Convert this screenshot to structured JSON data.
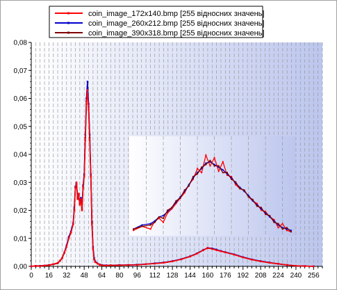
{
  "chart_data": [
    {
      "type": "line",
      "title": "",
      "xlabel": "",
      "ylabel": "",
      "xlim": [
        0,
        264
      ],
      "ylim": [
        0,
        0.08
      ],
      "grid": true,
      "legend_position": "top",
      "x_ticks": [
        0,
        16,
        32,
        48,
        64,
        80,
        96,
        112,
        128,
        144,
        160,
        176,
        192,
        208,
        224,
        240,
        256
      ],
      "y_ticks": [
        0,
        0.01,
        0.02,
        0.03,
        0.04,
        0.05,
        0.06,
        0.07,
        0.08
      ],
      "y_tick_labels": [
        "0,00",
        "0,01",
        "0,02",
        "0,03",
        "0,04",
        "0,05",
        "0,06",
        "0,07",
        "0,08"
      ],
      "background_gradient": [
        "#ffffff",
        "#bcc6ee"
      ],
      "series": [
        {
          "name": "coin_image_172x140.bmp [255 відносних значень]",
          "color": "#ff0000",
          "x": [
            0,
            4,
            8,
            12,
            16,
            20,
            24,
            26,
            28,
            30,
            32,
            34,
            36,
            38,
            39,
            40,
            41,
            42,
            43,
            44,
            45,
            46,
            47,
            48,
            49,
            50,
            51,
            52,
            53,
            54,
            55,
            56,
            57,
            58,
            60,
            62,
            64,
            68,
            72,
            80,
            88,
            96,
            104,
            112,
            120,
            128,
            136,
            144,
            150,
            156,
            160,
            164,
            168,
            172,
            176,
            184,
            192,
            200,
            208,
            216,
            224,
            232,
            240,
            248,
            256
          ],
          "y": [
            0,
            0.0002,
            0.0001,
            0.0003,
            0.0004,
            0.0008,
            0.0012,
            0.002,
            0.003,
            0.005,
            0.007,
            0.01,
            0.012,
            0.015,
            0.02,
            0.028,
            0.03,
            0.024,
            0.026,
            0.022,
            0.024,
            0.02,
            0.028,
            0.032,
            0.045,
            0.058,
            0.063,
            0.056,
            0.045,
            0.032,
            0.015,
            0.006,
            0.0025,
            0.0015,
            0.001,
            0.0006,
            0.0004,
            0.0003,
            0.0004,
            0.0004,
            0.0005,
            0.0005,
            0.0008,
            0.001,
            0.0013,
            0.0018,
            0.0025,
            0.0035,
            0.0045,
            0.0058,
            0.0066,
            0.0062,
            0.0058,
            0.0054,
            0.005,
            0.0042,
            0.0032,
            0.0024,
            0.0018,
            0.0013,
            0.0009,
            0.0005,
            0.0002,
            0.0001,
            0
          ]
        },
        {
          "name": "coin_image_260x212.bmp [255 відносних значень]",
          "color": "#0000cc",
          "x": [
            0,
            4,
            8,
            12,
            16,
            20,
            24,
            26,
            28,
            30,
            32,
            34,
            36,
            38,
            39,
            40,
            41,
            42,
            43,
            44,
            45,
            46,
            47,
            48,
            49,
            50,
            51,
            52,
            53,
            54,
            55,
            56,
            57,
            58,
            60,
            62,
            64,
            68,
            72,
            80,
            88,
            96,
            104,
            112,
            120,
            128,
            136,
            144,
            150,
            156,
            160,
            164,
            168,
            172,
            176,
            184,
            192,
            200,
            208,
            216,
            224,
            232,
            240,
            248,
            256
          ],
          "y": [
            0,
            0.0002,
            0.0002,
            0.0003,
            0.0005,
            0.0008,
            0.0012,
            0.002,
            0.003,
            0.005,
            0.0075,
            0.0105,
            0.0125,
            0.0155,
            0.021,
            0.0285,
            0.0295,
            0.025,
            0.0255,
            0.0225,
            0.0245,
            0.021,
            0.029,
            0.033,
            0.047,
            0.06,
            0.066,
            0.058,
            0.047,
            0.033,
            0.016,
            0.007,
            0.003,
            0.0018,
            0.0011,
            0.0007,
            0.0005,
            0.0004,
            0.0004,
            0.0005,
            0.0005,
            0.0006,
            0.0008,
            0.0011,
            0.0014,
            0.0019,
            0.0026,
            0.0036,
            0.0046,
            0.0059,
            0.0066,
            0.0064,
            0.006,
            0.0055,
            0.0051,
            0.0043,
            0.0033,
            0.0025,
            0.0019,
            0.0014,
            0.0009,
            0.0005,
            0.0002,
            0.0001,
            0
          ]
        },
        {
          "name": "coin_image_390x318.bmp [255 відносних значень]",
          "color": "#800000",
          "x": [
            0,
            4,
            8,
            12,
            16,
            20,
            24,
            26,
            28,
            30,
            32,
            34,
            36,
            38,
            39,
            40,
            41,
            42,
            43,
            44,
            45,
            46,
            47,
            48,
            49,
            50,
            51,
            52,
            53,
            54,
            55,
            56,
            57,
            58,
            60,
            62,
            64,
            68,
            72,
            80,
            88,
            96,
            104,
            112,
            120,
            128,
            136,
            144,
            150,
            156,
            160,
            164,
            168,
            172,
            176,
            184,
            192,
            200,
            208,
            216,
            224,
            232,
            240,
            248,
            256
          ],
          "y": [
            0,
            0.0001,
            0.0002,
            0.0003,
            0.0004,
            0.0007,
            0.0011,
            0.0019,
            0.0029,
            0.0048,
            0.0072,
            0.0102,
            0.0122,
            0.0152,
            0.0205,
            0.0282,
            0.0292,
            0.0245,
            0.0252,
            0.0222,
            0.0242,
            0.0205,
            0.0285,
            0.0325,
            0.046,
            0.059,
            0.064,
            0.057,
            0.046,
            0.0325,
            0.0155,
            0.0065,
            0.0028,
            0.0016,
            0.001,
            0.0006,
            0.0004,
            0.0003,
            0.0004,
            0.0004,
            0.0005,
            0.0006,
            0.0008,
            0.001,
            0.0013,
            0.0018,
            0.0025,
            0.0035,
            0.0045,
            0.0058,
            0.0065,
            0.0063,
            0.0059,
            0.0054,
            0.005,
            0.0042,
            0.0032,
            0.0024,
            0.0018,
            0.0013,
            0.0009,
            0.0005,
            0.0002,
            0.0001,
            0
          ]
        }
      ]
    },
    {
      "type": "line",
      "title": "",
      "xlabel": "",
      "ylabel": "",
      "xlim": [
        88,
        244
      ],
      "grid": true,
      "legend_position": "none",
      "background_gradient": [
        "#ffffff",
        "#bcc6ee"
      ],
      "series": [
        {
          "color": "#ff0000",
          "x": [
            92,
            100,
            108,
            112,
            116,
            120,
            124,
            128,
            132,
            136,
            140,
            144,
            148,
            152,
            156,
            160,
            164,
            168,
            172,
            176,
            180,
            184,
            188,
            192,
            196,
            200,
            204,
            208,
            212,
            216,
            220,
            224,
            228,
            232,
            236,
            240
          ],
          "y": [
            0.0012,
            0.0015,
            0.0013,
            0.0019,
            0.0021,
            0.0018,
            0.0025,
            0.0028,
            0.0032,
            0.0036,
            0.004,
            0.0046,
            0.005,
            0.0058,
            0.0055,
            0.0068,
            0.006,
            0.0066,
            0.0056,
            0.0063,
            0.0053,
            0.0052,
            0.0046,
            0.0043,
            0.0042,
            0.0037,
            0.0034,
            0.0032,
            0.0027,
            0.0026,
            0.0022,
            0.002,
            0.0014,
            0.0017,
            0.0012,
            0.0011
          ]
        },
        {
          "color": "#0000cc",
          "x": [
            92,
            100,
            108,
            112,
            116,
            120,
            124,
            128,
            132,
            136,
            140,
            144,
            148,
            152,
            156,
            160,
            164,
            168,
            172,
            176,
            180,
            184,
            188,
            192,
            196,
            200,
            204,
            208,
            212,
            216,
            220,
            224,
            228,
            232,
            236,
            240
          ],
          "y": [
            0.0013,
            0.0016,
            0.0017,
            0.0019,
            0.0022,
            0.0023,
            0.0026,
            0.0029,
            0.0033,
            0.0037,
            0.0041,
            0.0046,
            0.0051,
            0.0055,
            0.0058,
            0.0062,
            0.0063,
            0.0061,
            0.0059,
            0.0057,
            0.0054,
            0.0051,
            0.0047,
            0.0044,
            0.0041,
            0.0038,
            0.0034,
            0.0031,
            0.0028,
            0.0025,
            0.0022,
            0.0019,
            0.0016,
            0.0014,
            0.0013,
            0.0012
          ]
        },
        {
          "color": "#800000",
          "x": [
            92,
            100,
            108,
            112,
            116,
            120,
            124,
            128,
            132,
            136,
            140,
            144,
            148,
            152,
            156,
            160,
            164,
            168,
            172,
            176,
            180,
            184,
            188,
            192,
            196,
            200,
            204,
            208,
            212,
            216,
            220,
            224,
            228,
            232,
            236,
            240
          ],
          "y": [
            0.0013,
            0.0015,
            0.0016,
            0.0018,
            0.0022,
            0.0021,
            0.0027,
            0.0029,
            0.0034,
            0.0036,
            0.0042,
            0.0045,
            0.0052,
            0.0054,
            0.0059,
            0.0061,
            0.0064,
            0.006,
            0.006,
            0.0055,
            0.0055,
            0.005,
            0.0048,
            0.0043,
            0.0042,
            0.0037,
            0.0035,
            0.003,
            0.0029,
            0.0024,
            0.0023,
            0.0018,
            0.0017,
            0.0013,
            0.0014,
            0.0011
          ]
        }
      ]
    }
  ]
}
